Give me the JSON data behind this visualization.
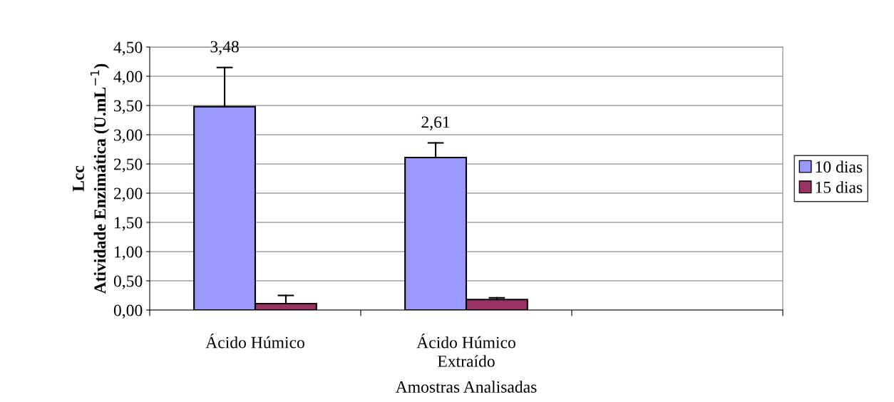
{
  "chart_data": {
    "type": "bar",
    "xlabel": "Amostras Analisadas",
    "ylabel": "Lcc\nAtividade Enzimática (U.mL$^{−1}$)",
    "categories": [
      "Ácido Húmico",
      "Ácido Húmico\nExtraído",
      null
    ],
    "series": [
      {
        "name": "10 dias",
        "color": "#9999ff",
        "values": [
          3.48,
          2.61,
          null
        ],
        "errors": [
          [
            3.48,
            4.15
          ],
          [
            2.61,
            2.86
          ],
          null
        ],
        "value_labels": [
          "3,48",
          "2,61",
          null
        ]
      },
      {
        "name": "15 dias",
        "color": "#993366",
        "values": [
          0.11,
          0.18,
          null
        ],
        "errors": [
          [
            0.11,
            0.25
          ],
          [
            0.18,
            0.21
          ],
          null
        ]
      }
    ],
    "ylim": [
      0,
      4.5
    ],
    "yticks": [
      {
        "value": 0,
        "label": "0,00"
      },
      {
        "value": 0.5,
        "label": "0,50"
      },
      {
        "value": 1,
        "label": "1,00"
      },
      {
        "value": 1.5,
        "label": "1,50"
      },
      {
        "value": 2,
        "label": "2,00"
      },
      {
        "value": 2.5,
        "label": "2,50"
      },
      {
        "value": 3,
        "label": "3,00"
      },
      {
        "value": 3.5,
        "label": "3,50"
      },
      {
        "value": 4,
        "label": "4,00"
      },
      {
        "value": 4.5,
        "label": "4,50"
      }
    ],
    "grid": "y",
    "legend": "right"
  }
}
